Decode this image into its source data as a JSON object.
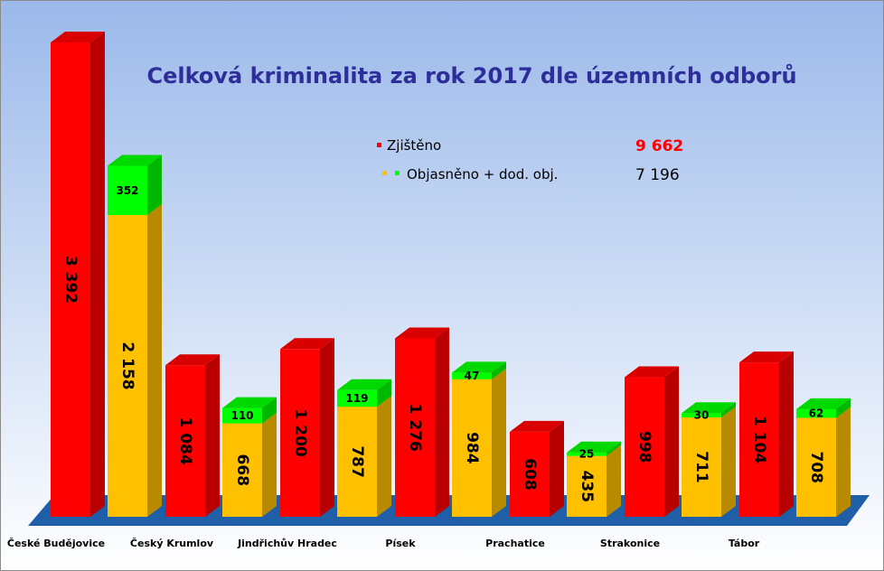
{
  "chart_data": {
    "type": "bar",
    "title": "Celková kriminalita za rok 2017 dle územních odborů",
    "categories": [
      "České Budějovice",
      "Český Krumlov",
      "Jindřichův Hradec",
      "Písek",
      "Prachatice",
      "Strakonice",
      "Tábor"
    ],
    "series": [
      {
        "name": "Zjištěno",
        "values": [
          3392,
          1084,
          1200,
          1276,
          608,
          998,
          1104
        ],
        "labels": [
          "3 392",
          "1 084",
          "1 200",
          "1 276",
          "608",
          "998",
          "1 104"
        ]
      },
      {
        "name": "Objasněno",
        "values": [
          2158,
          668,
          787,
          984,
          435,
          711,
          708
        ],
        "labels": [
          "2 158",
          "668",
          "787",
          "984",
          "435",
          "711",
          "708"
        ]
      },
      {
        "name": "dod. obj.",
        "values": [
          352,
          110,
          119,
          47,
          25,
          30,
          62
        ],
        "labels": [
          "352",
          "110",
          "119",
          "47",
          "25",
          "30",
          "62"
        ]
      }
    ],
    "stacked_series": [
      "Objasněno",
      "dod. obj."
    ],
    "legend": {
      "position": "top-center",
      "entries": [
        {
          "label": "Zjištěno",
          "total": "9 662"
        },
        {
          "label": "Objasněno + dod. obj.",
          "total": "7 196"
        }
      ]
    },
    "colors": {
      "zjisteno": "#ff0000",
      "objasneno": "#ffc000",
      "dod_obj": "#00ff00",
      "floor": "#1f5fa8",
      "title": "#2e2e9a",
      "total_red": "#ff0000",
      "background_top": "#9bb9ea",
      "background_bottom": "#ffffff"
    },
    "ylim": [
      0,
      3600
    ],
    "grid": false,
    "view": "3d"
  }
}
